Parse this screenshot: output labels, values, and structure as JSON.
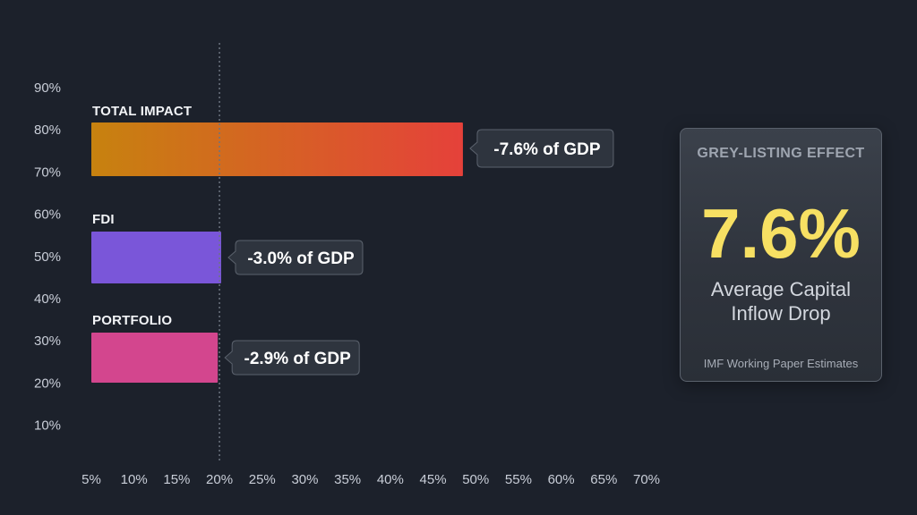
{
  "chart_data": {
    "type": "bar",
    "orientation": "horizontal",
    "categories": [
      "TOTAL IMPACT",
      "FDI",
      "PORTFOLIO"
    ],
    "values": [
      48.5,
      20.2,
      19.8
    ],
    "data_labels": [
      "-7.6% of GDP",
      "-3.0% of GDP",
      "-2.9% of GDP"
    ],
    "x_ticks": [
      "5%",
      "10%",
      "15%",
      "20%",
      "25%",
      "30%",
      "35%",
      "40%",
      "45%",
      "50%",
      "55%",
      "60%",
      "65%",
      "70%"
    ],
    "x_tick_values": [
      5,
      10,
      15,
      20,
      25,
      30,
      35,
      40,
      45,
      50,
      55,
      60,
      65,
      70
    ],
    "xlim": [
      5,
      70
    ],
    "y_ticks": [
      "90%",
      "80%",
      "70%",
      "60%",
      "50%",
      "40%",
      "30%",
      "20%",
      "10%"
    ],
    "reference_line_x": 20,
    "grid": false,
    "colors": {
      "total_start": "#c7820f",
      "total_end": "#e5413a",
      "fdi": "#7a56d9",
      "portfolio": "#d3468e",
      "reference_line": "#6d7480"
    },
    "title": "",
    "xlabel": "",
    "ylabel": ""
  },
  "stat_card": {
    "title": "GREY-LISTING EFFECT",
    "value": "7.6%",
    "description": "Average Capital Inflow Drop",
    "source": "IMF Working Paper Estimates",
    "value_color": "#f7e063"
  }
}
